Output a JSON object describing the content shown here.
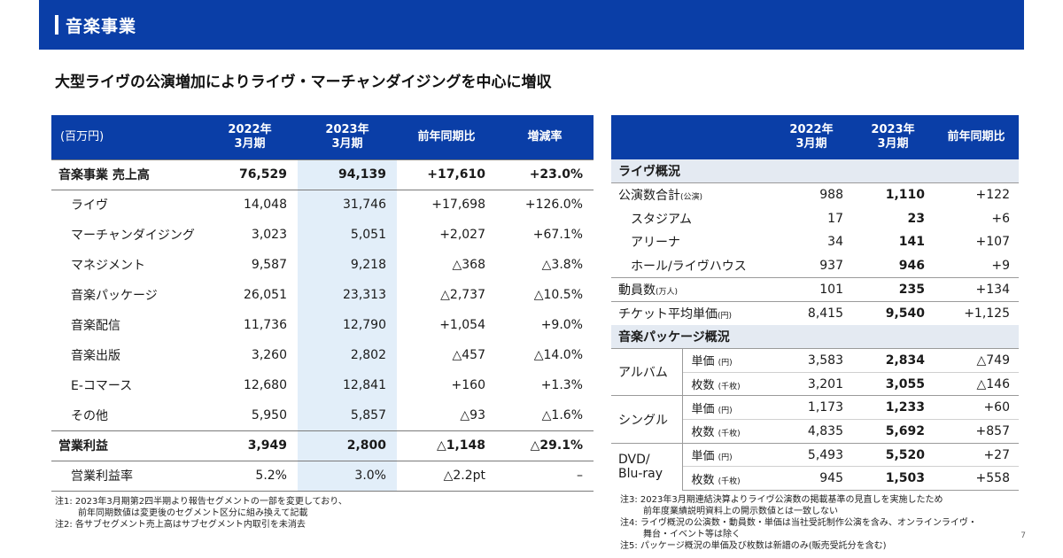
{
  "header": {
    "title": "音楽事業"
  },
  "headline": "大型ライヴの公演増加によりライヴ・マーチャンダイジングを中心に増収",
  "left_table": {
    "headers": [
      "(百万円)",
      "2022年\n3月期",
      "2023年\n3月期",
      "前年同期比",
      "増減率"
    ],
    "rows": [
      {
        "label": "音楽事業 売上高",
        "v2022": "76,529",
        "v2023": "94,139",
        "yoy": "+17,610",
        "rate": "+23.0%"
      },
      {
        "label": "ライヴ",
        "v2022": "14,048",
        "v2023": "31,746",
        "yoy": "+17,698",
        "rate": "+126.0%"
      },
      {
        "label": "マーチャンダイジング",
        "v2022": "3,023",
        "v2023": "5,051",
        "yoy": "+2,027",
        "rate": "+67.1%"
      },
      {
        "label": "マネジメント",
        "v2022": "9,587",
        "v2023": "9,218",
        "yoy": "△368",
        "rate": "△3.8%"
      },
      {
        "label": "音楽パッケージ",
        "v2022": "26,051",
        "v2023": "23,313",
        "yoy": "△2,737",
        "rate": "△10.5%"
      },
      {
        "label": "音楽配信",
        "v2022": "11,736",
        "v2023": "12,790",
        "yoy": "+1,054",
        "rate": "+9.0%"
      },
      {
        "label": "音楽出版",
        "v2022": "3,260",
        "v2023": "2,802",
        "yoy": "△457",
        "rate": "△14.0%"
      },
      {
        "label": "E-コマース",
        "v2022": "12,680",
        "v2023": "12,841",
        "yoy": "+160",
        "rate": "+1.3%"
      },
      {
        "label": "その他",
        "v2022": "5,950",
        "v2023": "5,857",
        "yoy": "△93",
        "rate": "△1.6%"
      },
      {
        "label": "営業利益",
        "v2022": "3,949",
        "v2023": "2,800",
        "yoy": "△1,148",
        "rate": "△29.1%"
      },
      {
        "label": "営業利益率",
        "v2022": "5.2%",
        "v2023": "3.0%",
        "yoy": "△2.2pt",
        "rate": "–"
      }
    ]
  },
  "right_table": {
    "headers": [
      "",
      "2022年\n3月期",
      "2023年\n3月期",
      "前年同期比"
    ],
    "section_live": "ライヴ概況",
    "live_rows": [
      {
        "label": "公演数合計",
        "unit": "(公演)",
        "v2022": "988",
        "v2023": "1,110",
        "yoy": "+122"
      },
      {
        "label": "スタジアム",
        "unit": "",
        "v2022": "17",
        "v2023": "23",
        "yoy": "+6"
      },
      {
        "label": "アリーナ",
        "unit": "",
        "v2022": "34",
        "v2023": "141",
        "yoy": "+107"
      },
      {
        "label": "ホール/ライヴハウス",
        "unit": "",
        "v2022": "937",
        "v2023": "946",
        "yoy": "+9"
      },
      {
        "label": "動員数",
        "unit": "(万人)",
        "v2022": "101",
        "v2023": "235",
        "yoy": "+134"
      },
      {
        "label": "チケット平均単価",
        "unit": "(円)",
        "v2022": "8,415",
        "v2023": "9,540",
        "yoy": "+1,125"
      }
    ],
    "section_package": "音楽パッケージ概況",
    "package_groups": [
      {
        "label": "アルバム",
        "rows": [
          {
            "label": "単価",
            "unit": "(円)",
            "v2022": "3,583",
            "v2023": "2,834",
            "yoy": "△749"
          },
          {
            "label": "枚数",
            "unit": "(千枚)",
            "v2022": "3,201",
            "v2023": "3,055",
            "yoy": "△146"
          }
        ]
      },
      {
        "label": "シングル",
        "rows": [
          {
            "label": "単価",
            "unit": "(円)",
            "v2022": "1,173",
            "v2023": "1,233",
            "yoy": "+60"
          },
          {
            "label": "枚数",
            "unit": "(千枚)",
            "v2022": "4,835",
            "v2023": "5,692",
            "yoy": "+857"
          }
        ]
      },
      {
        "label": "DVD/\nBlu-ray",
        "rows": [
          {
            "label": "単価",
            "unit": "(円)",
            "v2022": "5,493",
            "v2023": "5,520",
            "yoy": "+27"
          },
          {
            "label": "枚数",
            "unit": "(千枚)",
            "v2022": "945",
            "v2023": "1,503",
            "yoy": "+558"
          }
        ]
      }
    ]
  },
  "notes_left": [
    "注1: 2023年3月期第2四半期より報告セグメントの一部を変更しており、",
    "前年同期数値は変更後のセグメント区分に組み換えて記載",
    "注2: 各サブセグメント売上高はサブセグメント内取引を未消去"
  ],
  "notes_right": [
    "注3: 2023年3月期連結決算よりライヴ公演数の掲載基準の見直しを実施したため",
    "前年度業績説明資料上の開示数値とは一致しない",
    "注4: ライヴ概況の公演数・動員数・単価は当社受託制作公演を含み、オンラインライヴ・",
    "舞台・イベント等は除く",
    "注5: パッケージ概況の単価及び枚数は新譜のみ(販売受託分を含む)"
  ],
  "page_number": "7"
}
